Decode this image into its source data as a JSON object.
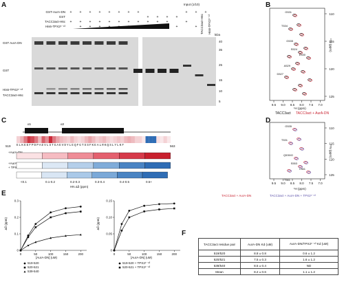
{
  "panels": {
    "a": "A",
    "b": "B",
    "c": "C",
    "d": "D",
    "e": "E",
    "f": "F"
  },
  "gel": {
    "row_labels": [
      "GST-AurA-DN",
      "GST",
      "TACC3act-H6c",
      "His6-TPX2¹⁻⁴³"
    ],
    "row_marks": [
      [
        "+",
        "+",
        "+",
        "+",
        "+",
        "+",
        "+",
        "+",
        "",
        "",
        "",
        "",
        "+",
        "+",
        "+"
      ],
      [
        "",
        "",
        "",
        "",
        "",
        "",
        "",
        "",
        "+",
        "+",
        "+",
        "+",
        "",
        "",
        ""
      ],
      [
        "+",
        "+",
        "+",
        "+",
        "+",
        "+",
        "+",
        "+",
        "+",
        "+",
        "+",
        "",
        "+",
        "",
        ""
      ],
      [
        "",
        "+",
        "+",
        "+",
        "+",
        "+",
        "+",
        "+",
        "",
        "+",
        "+",
        "+",
        "",
        "+",
        ""
      ]
    ],
    "input_label": "Input (1/10)",
    "input_lanes": [
      "TACC3act-H6c",
      "His6-TPX2¹⁻⁴³"
    ],
    "kda_label": "kDa",
    "kda_marks": [
      "40",
      "35",
      "25",
      "15",
      "10",
      "5"
    ],
    "band_labels": [
      "GST AurA DN",
      "GST",
      "His6-TPX2¹⁻⁴³",
      "TACC3act-H6c"
    ]
  },
  "nmr_b": {
    "ylabel": "¹⁵N (ppm)",
    "xlabel": "¹H (ppm)",
    "yticks": [
      "110",
      "115",
      "120",
      "125"
    ],
    "xticks": [
      "9.5",
      "9.0",
      "8.5",
      "8.0",
      "7.5",
      "7.0"
    ],
    "peaks": [
      "G531",
      "T534",
      "G535",
      "S524",
      "E530",
      "A529",
      "D527"
    ],
    "legend_a": "TACC3act",
    "legend_b": "TACC3act + AurA-DN",
    "colors": {
      "a": "#111111",
      "b": "#c8202e"
    }
  },
  "nmr_d": {
    "ylabel": "¹⁵N (ppm)",
    "xlabel": "¹H (ppm)",
    "yticks": [
      "110",
      "115",
      "120",
      "125"
    ],
    "xticks": [
      "9.5",
      "9.0",
      "8.5",
      "8.0",
      "7.5",
      "7.0"
    ],
    "peaks": [
      "G535",
      "T531",
      "Q539/G",
      "S553",
      "L561",
      "T561"
    ],
    "legend_a": "TACC3act + AurA-DN",
    "legend_b": "TACC3act + AurA-DN + TPX2¹⁻⁴³",
    "colors": {
      "a": "#c8202e",
      "b": "#5a4fa8"
    }
  },
  "seq": {
    "helices": [
      "α1",
      "α2"
    ],
    "start": "519",
    "end": "563",
    "sequence": "ELKEEFPDPAEVLSTGAEVDYLEQFGTSSFKEALRKQSLYLKF",
    "row1": "+AurA-DN",
    "row2_a": "+AurA-DN",
    "row2_b": "+ TPX2¹⁻⁴³",
    "scale": [
      "<0.1",
      "0.1-0.2",
      "0.2-0.3",
      "0.3-0.4",
      "0.4-0.5",
      "0.5+"
    ],
    "scale_label": "HN  Δδ (ppm)"
  },
  "chart_data": [
    {
      "type": "scatter",
      "xlabel": "[AurA-DN] (uM)",
      "ylabel": "Δδ (ppm)",
      "xticks": [
        "0",
        "50",
        "100",
        "150",
        "200"
      ],
      "yticks": [
        "0",
        "0.1",
        "0.2",
        "0.3"
      ],
      "xlim": [
        0,
        220
      ],
      "ylim": [
        0,
        0.3
      ],
      "series": [
        {
          "name": "519-520",
          "marker": "circle",
          "x": [
            0,
            25,
            50,
            100,
            150,
            200
          ],
          "y": [
            0,
            0.09,
            0.16,
            0.23,
            0.255,
            0.265
          ]
        },
        {
          "name": "520-521",
          "marker": "square",
          "x": [
            0,
            25,
            50,
            100,
            150,
            200
          ],
          "y": [
            0,
            0.08,
            0.14,
            0.2,
            0.225,
            0.235
          ]
        },
        {
          "name": "539-540",
          "marker": "triangle",
          "x": [
            0,
            25,
            50,
            100,
            150,
            200
          ],
          "y": [
            0,
            0.03,
            0.05,
            0.075,
            0.088,
            0.095
          ]
        }
      ]
    },
    {
      "type": "scatter",
      "xlabel": "[AurA-DN] (uM)",
      "ylabel": "Δδ (ppm)",
      "xticks": [
        "0",
        "50",
        "100",
        "150",
        "200"
      ],
      "yticks": [
        "0",
        "0.05",
        "0.10",
        "0.15"
      ],
      "xlim": [
        0,
        220
      ],
      "ylim": [
        0,
        0.15
      ],
      "series": [
        {
          "name": "519-520 + TPX2¹⁻⁴³",
          "marker": "circle",
          "x": [
            0,
            25,
            50,
            100,
            150,
            200
          ],
          "y": [
            0,
            0.08,
            0.12,
            0.135,
            0.14,
            0.142
          ]
        },
        {
          "name": "520-521 + TPX2¹⁻⁴³",
          "marker": "square",
          "x": [
            0,
            25,
            50,
            100,
            150,
            200
          ],
          "y": [
            0,
            0.06,
            0.1,
            0.118,
            0.124,
            0.127
          ]
        }
      ]
    }
  ],
  "kd_table": {
    "headers": [
      "TACC3act residue pair",
      "AurA-DN Kd (uM)",
      "AurA-DN/TPX2¹⁻⁴³ Kd (uM)"
    ],
    "rows": [
      [
        "519/520",
        "8.8 ± 0.8",
        "0.6 ± 1.2"
      ],
      [
        "520/521",
        "7.5 ± 0.3",
        "1.6 ± 1.2"
      ],
      [
        "539/540",
        "8.5 ± 0.4",
        "ND"
      ],
      [
        "Mean",
        "8.2 ± 0.6",
        "1.1 ± 1.2"
      ]
    ]
  }
}
